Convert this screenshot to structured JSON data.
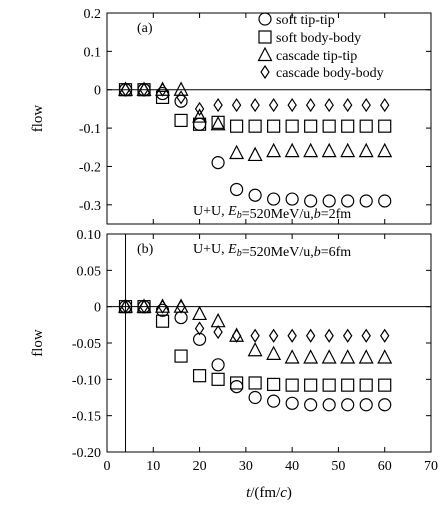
{
  "chart_data": {
    "type": "scatter",
    "xlabel": "t/(fm/c)",
    "xlim": [
      0,
      70
    ],
    "xticks": [
      0,
      10,
      20,
      30,
      40,
      50,
      60,
      70
    ],
    "ylabel": "flow",
    "legend_position": "top-right",
    "legend": [
      {
        "name": "soft tip-tip",
        "marker": "circle"
      },
      {
        "name": "soft body-body",
        "marker": "square"
      },
      {
        "name": "cascade tip-tip",
        "marker": "triangle"
      },
      {
        "name": "cascade body-body",
        "marker": "diamond"
      }
    ],
    "x": [
      4,
      8,
      12,
      16,
      20,
      24,
      28,
      32,
      36,
      40,
      44,
      48,
      52,
      56,
      60
    ],
    "panels": [
      {
        "label": "(a)",
        "annotation": "U+U, E_b=520MeV/u,b=2fm",
        "ylim": [
          -0.35,
          0.2
        ],
        "yticks": [
          0.2,
          0.1,
          0,
          -0.1,
          -0.2,
          -0.3
        ],
        "ytick_labels": [
          "0.2",
          "0.1",
          "0",
          "-0.1",
          "-0.2",
          "-0.3"
        ],
        "series": [
          {
            "name": "soft tip-tip",
            "marker": "circle",
            "values": [
              0,
              0,
              -0.01,
              -0.03,
              -0.09,
              -0.19,
              -0.26,
              -0.275,
              -0.285,
              -0.285,
              -0.29,
              -0.29,
              -0.29,
              -0.29,
              -0.29
            ]
          },
          {
            "name": "soft body-body",
            "marker": "square",
            "values": [
              0,
              0,
              -0.02,
              -0.08,
              -0.09,
              -0.085,
              -0.095,
              -0.095,
              -0.095,
              -0.095,
              -0.095,
              -0.095,
              -0.095,
              -0.095,
              -0.095
            ]
          },
          {
            "name": "cascade tip-tip",
            "marker": "triangle",
            "values": [
              0,
              0,
              0,
              0,
              -0.07,
              -0.09,
              -0.165,
              -0.17,
              -0.16,
              -0.16,
              -0.16,
              -0.16,
              -0.16,
              -0.16,
              -0.16
            ]
          },
          {
            "name": "cascade body-body",
            "marker": "diamond",
            "values": [
              0,
              0,
              0,
              -0.02,
              -0.05,
              -0.04,
              -0.04,
              -0.04,
              -0.04,
              -0.04,
              -0.04,
              -0.04,
              -0.04,
              -0.04,
              -0.04
            ]
          }
        ]
      },
      {
        "label": "(b)",
        "annotation": "U+U, E_b=520MeV/u,b=6fm",
        "ylim": [
          -0.2,
          0.1
        ],
        "yticks": [
          0.1,
          0.05,
          0,
          -0.05,
          -0.1,
          -0.15,
          -0.2
        ],
        "ytick_labels": [
          "0.10",
          "0.05",
          "0",
          "-0.05",
          "-0.10",
          "-0.15",
          "-0.20"
        ],
        "series": [
          {
            "name": "soft tip-tip",
            "marker": "circle",
            "values": [
              0,
              0,
              -0.005,
              -0.015,
              -0.045,
              -0.08,
              -0.11,
              -0.125,
              -0.13,
              -0.133,
              -0.135,
              -0.135,
              -0.135,
              -0.135,
              -0.135
            ]
          },
          {
            "name": "soft body-body",
            "marker": "square",
            "values": [
              0,
              0,
              -0.02,
              -0.068,
              -0.095,
              -0.1,
              -0.105,
              -0.105,
              -0.107,
              -0.108,
              -0.108,
              -0.108,
              -0.108,
              -0.108,
              -0.108
            ]
          },
          {
            "name": "cascade tip-tip",
            "marker": "triangle",
            "values": [
              0,
              0,
              0,
              0,
              -0.01,
              -0.02,
              -0.04,
              -0.06,
              -0.065,
              -0.07,
              -0.07,
              -0.07,
              -0.07,
              -0.07,
              -0.07
            ]
          },
          {
            "name": "cascade body-body",
            "marker": "diamond",
            "values": [
              0,
              0,
              0,
              0,
              -0.03,
              -0.035,
              -0.04,
              -0.04,
              -0.04,
              -0.04,
              -0.04,
              -0.04,
              -0.04,
              -0.04,
              -0.04
            ]
          }
        ]
      }
    ]
  }
}
